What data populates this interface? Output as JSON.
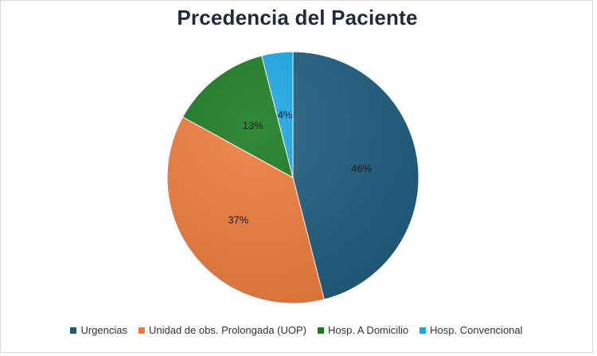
{
  "chart_data": {
    "type": "pie",
    "title": "Prcedencia del Paciente",
    "categories": [
      "Urgencias",
      "Unidad de obs. Prolongada (UOP)",
      "Hosp. A Domicilio",
      "Hosp. Convencional"
    ],
    "values": [
      46,
      37,
      13,
      4
    ],
    "labels": [
      "46%",
      "37%",
      "13%",
      "4%"
    ],
    "colors": [
      "#1d5b7d",
      "#ec7a3a",
      "#177a1f",
      "#1aa5e3"
    ],
    "legend_position": "bottom"
  }
}
